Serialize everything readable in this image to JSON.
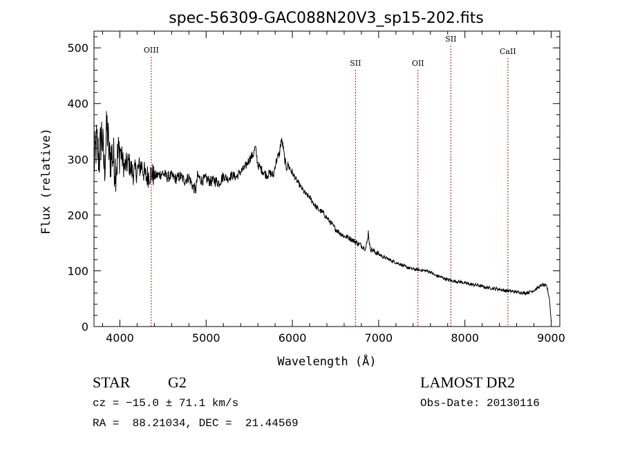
{
  "chart_data": {
    "type": "line",
    "title": "spec-56309-GAC088N20V3_sp15-202.fits",
    "xlabel": "Wavelength (Å)",
    "ylabel": "Flux (relative)",
    "xlim": [
      3700,
      9100
    ],
    "ylim": [
      0,
      530
    ],
    "xticks": [
      4000,
      5000,
      6000,
      7000,
      8000,
      9000
    ],
    "yticks": [
      0,
      100,
      200,
      300,
      400,
      500
    ],
    "grid": false,
    "legend": "none",
    "line_color": "#000000",
    "marker_color": "#8b1a1a",
    "spectral_lines": [
      {
        "name": "OIII",
        "x": 4364
      },
      {
        "name": "SII",
        "x": 6731
      },
      {
        "name": "OII",
        "x": 7456
      },
      {
        "name": "SII",
        "x": 7837
      },
      {
        "name": "CaII",
        "x": 8498
      }
    ],
    "series": [
      {
        "x": [
          3700,
          3730,
          3760,
          3790,
          3820,
          3850,
          3880,
          3910,
          3950,
          4000,
          4050,
          4100,
          4150,
          4200,
          4250,
          4300,
          4364,
          4400,
          4450,
          4500,
          4550,
          4600,
          4650,
          4700,
          4750,
          4800,
          4850,
          4880,
          4900,
          4950,
          5000,
          5050,
          5100,
          5150,
          5200,
          5250,
          5300,
          5350,
          5400,
          5450,
          5500,
          5550,
          5570,
          5600,
          5650,
          5700,
          5750,
          5780,
          5800,
          5820,
          5850,
          5870,
          5890,
          5910,
          5930,
          5950,
          6000,
          6050,
          6100,
          6150,
          6200,
          6250,
          6300,
          6350,
          6400,
          6450,
          6500,
          6550,
          6600,
          6650,
          6700,
          6750,
          6800,
          6850,
          6870,
          6880,
          6900,
          6950,
          7000,
          7050,
          7100,
          7150,
          7200,
          7250,
          7300,
          7350,
          7400,
          7450,
          7500,
          7550,
          7600,
          7650,
          7700,
          7750,
          7800,
          7850,
          7900,
          7950,
          8000,
          8050,
          8100,
          8150,
          8200,
          8250,
          8300,
          8350,
          8400,
          8450,
          8500,
          8550,
          8600,
          8650,
          8700,
          8750,
          8800,
          8850,
          8900,
          8950,
          8980,
          9000
        ],
        "y": [
          290,
          330,
          300,
          350,
          280,
          360,
          300,
          310,
          285,
          320,
          285,
          295,
          275,
          280,
          290,
          268,
          275,
          270,
          272,
          275,
          268,
          270,
          265,
          270,
          262,
          268,
          250,
          245,
          270,
          262,
          265,
          260,
          262,
          258,
          270,
          265,
          272,
          268,
          278,
          285,
          300,
          310,
          322,
          290,
          280,
          272,
          275,
          270,
          290,
          300,
          310,
          335,
          325,
          300,
          285,
          290,
          275,
          262,
          250,
          238,
          232,
          220,
          210,
          205,
          195,
          185,
          175,
          168,
          162,
          160,
          155,
          150,
          145,
          140,
          155,
          170,
          140,
          135,
          130,
          125,
          122,
          118,
          115,
          112,
          108,
          105,
          103,
          102,
          101,
          100,
          98,
          92,
          90,
          87,
          84,
          82,
          81,
          80,
          78,
          76,
          75,
          74,
          72,
          70,
          69,
          68,
          67,
          65,
          64,
          63,
          62,
          61,
          60,
          62,
          65,
          70,
          75,
          72,
          50,
          10
        ]
      }
    ]
  },
  "info": {
    "object_class": "STAR",
    "subclass": "G2",
    "survey": "LAMOST DR2",
    "cz_line": "cz = −15.0 ± 71.1 km/s",
    "obs_date_line": "Obs-Date: 20130116",
    "coords_line": "RA =  88.21034, DEC =  21.44569"
  }
}
